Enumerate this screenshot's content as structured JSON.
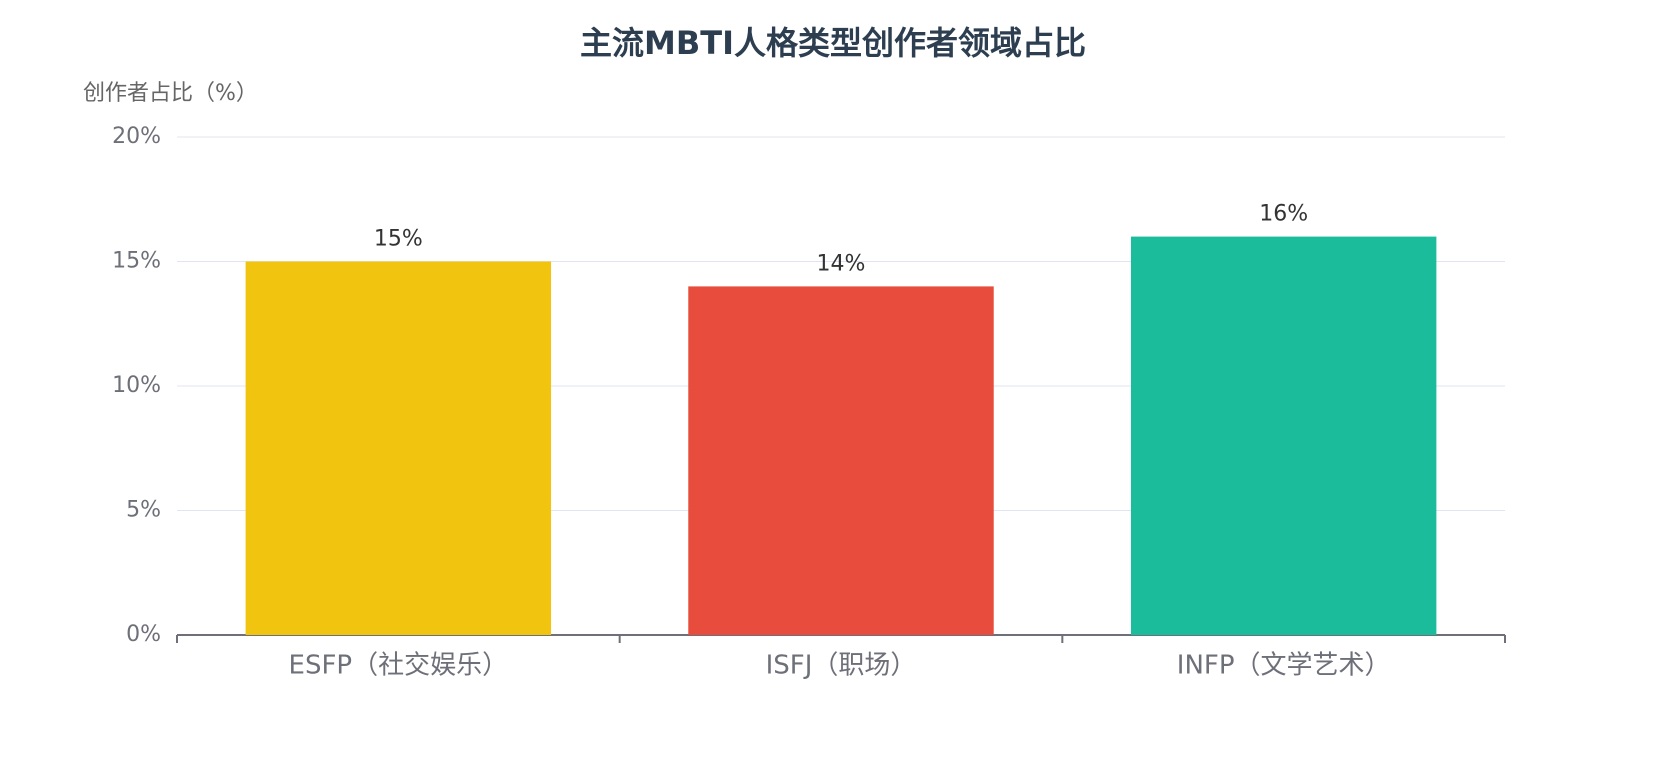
{
  "chart_data": {
    "type": "bar",
    "title": "主流MBTI人格类型创作者领域占比",
    "y_label": "创作者占比（%）",
    "categories": [
      "ESFP（社交娱乐）",
      "ISFJ（职场）",
      "INFP（文学艺术）"
    ],
    "values": [
      15,
      14,
      16
    ],
    "value_labels": [
      "15%",
      "14%",
      "16%"
    ],
    "colors": [
      "#f1c40f",
      "#e74c3c",
      "#1abc9c"
    ],
    "ylim": [
      0,
      20
    ],
    "yticks": [
      {
        "value": 0,
        "label": "0%"
      },
      {
        "value": 5,
        "label": "5%"
      },
      {
        "value": 10,
        "label": "10%"
      },
      {
        "value": 15,
        "label": "15%"
      },
      {
        "value": 20,
        "label": "20%"
      }
    ],
    "grid": true
  }
}
